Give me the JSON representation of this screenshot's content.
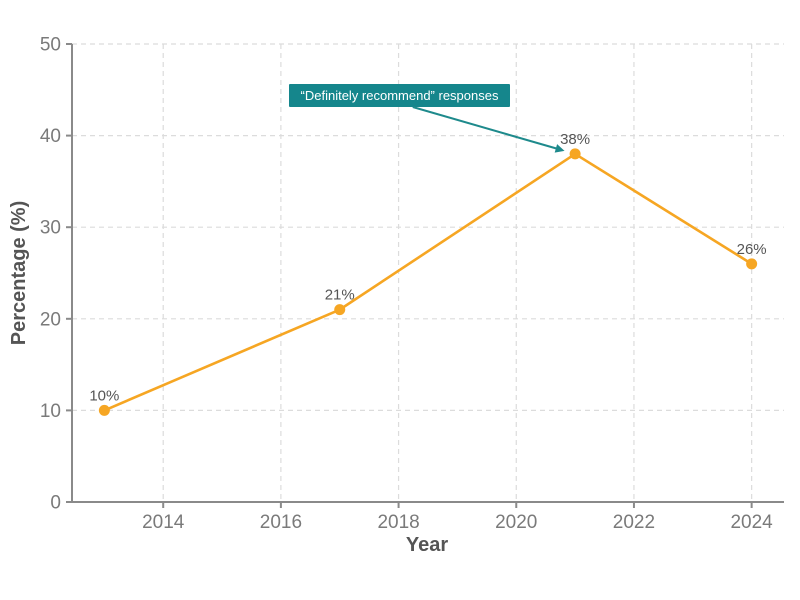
{
  "chart_data": {
    "type": "line",
    "title": "",
    "x": [
      2013,
      2017,
      2021,
      2024
    ],
    "series": [
      {
        "name": "“Definitely recommend” responses",
        "values": [
          10,
          21,
          38,
          26
        ]
      }
    ],
    "point_labels": [
      "10%",
      "21%",
      "38%",
      "26%"
    ],
    "xlabel": "Year",
    "ylabel": "Percentage (%)",
    "xlim": [
      2012.45,
      2024.55
    ],
    "ylim": [
      0,
      50
    ],
    "xticks": [
      2014,
      2016,
      2018,
      2020,
      2022,
      2024
    ],
    "yticks": [
      0,
      10,
      20,
      30,
      40,
      50
    ],
    "grid": true,
    "legend": "none",
    "annotation": {
      "text": "“Definitely recommend” responses",
      "target": {
        "x": 2021,
        "y": 38
      }
    },
    "colors": {
      "line": "#F6A623",
      "point": "#F6A623",
      "annotation_bg": "#15868C",
      "annotation_text": "#FFFFFF",
      "arrow": "#1E8A8C",
      "axis": "#8A8A8A",
      "grid": "#DCDCDC",
      "tick_label": "#7A7A7A",
      "axis_title": "#555555",
      "point_label": "#555555",
      "background": "#FFFFFF"
    }
  }
}
